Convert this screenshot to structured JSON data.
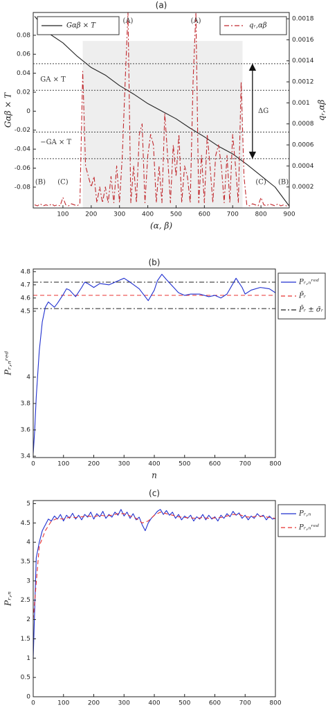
{
  "chart_data": [
    {
      "type": "line",
      "title": "(a)",
      "x_label": "(α, β)",
      "y_label": "Gαβ × T",
      "y2_label": "qᵣ,αβ",
      "xlim": [
        -5,
        900
      ],
      "xticks": [
        100,
        200,
        300,
        400,
        500,
        600,
        700,
        800,
        900
      ],
      "ylim": [
        -0.102,
        0.104
      ],
      "yticks": [
        -0.08,
        -0.06,
        -0.04,
        -0.02,
        0,
        0.02,
        0.04,
        0.06,
        0.08
      ],
      "y2lim": [
        0,
        0.00186
      ],
      "y2ticks": [
        0.0002,
        0.0004,
        0.0006,
        0.0008,
        0.001,
        0.0012,
        0.0014,
        0.0016,
        0.0018
      ],
      "legend": "top",
      "shade": {
        "x": [
          170,
          735
        ],
        "top": 0.074,
        "color": "#eeeeee"
      },
      "reference_lines": [
        {
          "values": [
            0.05,
            0.022,
            -0.022,
            -0.05
          ],
          "color": "#444444",
          "linestyle": "dotted"
        }
      ],
      "annotations": [
        "(A)",
        "(A)",
        "(B)",
        "(B)",
        "(C)",
        "(C)",
        "GA × T",
        "−GA × T",
        "ΔG"
      ],
      "series": [
        {
          "name": "Gαβ × T",
          "color": "#222222",
          "linestyle": "solid",
          "x": [
            0,
            50,
            100,
            150,
            200,
            250,
            300,
            350,
            400,
            450,
            500,
            550,
            600,
            650,
            700,
            750,
            800,
            850,
            900
          ],
          "values": [
            0.1,
            0.082,
            0.072,
            0.058,
            0.046,
            0.038,
            0.027,
            0.018,
            0.008,
            0.0,
            -0.008,
            -0.018,
            -0.027,
            -0.037,
            -0.045,
            -0.056,
            -0.068,
            -0.08,
            -0.1
          ]
        },
        {
          "name": "qᵣ,αβ",
          "color": "#c0282d",
          "linestyle": "dashdot",
          "axis": "y2",
          "x": [
            0,
            10,
            20,
            30,
            40,
            50,
            60,
            70,
            80,
            90,
            100,
            110,
            120,
            130,
            140,
            150,
            160,
            170,
            180,
            190,
            200,
            210,
            220,
            230,
            240,
            250,
            260,
            270,
            280,
            290,
            300,
            310,
            320,
            330,
            340,
            350,
            360,
            370,
            380,
            390,
            400,
            410,
            420,
            430,
            440,
            450,
            460,
            470,
            480,
            490,
            500,
            510,
            520,
            530,
            540,
            550,
            560,
            570,
            580,
            590,
            600,
            610,
            620,
            630,
            640,
            650,
            660,
            670,
            680,
            690,
            700,
            710,
            720,
            730,
            740,
            750,
            760,
            770,
            780,
            790,
            800,
            810,
            820,
            830,
            840,
            850,
            860,
            870,
            880,
            890,
            900
          ],
          "values": [
            3e-05,
            2e-05,
            4e-05,
            2e-05,
            3e-05,
            2e-05,
            4e-05,
            2e-05,
            3e-05,
            2e-05,
            0.0001,
            3e-05,
            2e-05,
            4e-05,
            3e-05,
            2e-05,
            4e-05,
            0.0013,
            0.0004,
            0.0003,
            0.0002,
            0.0003,
            5e-05,
            0.0002,
            5e-05,
            0.0002,
            5e-05,
            0.0003,
            5e-05,
            0.0004,
            5e-05,
            0.0005,
            0.0012,
            0.00186,
            5e-05,
            0.0004,
            5e-05,
            0.0007,
            0.0008,
            5e-05,
            0.0005,
            0.0007,
            0.0006,
            5e-05,
            0.0004,
            5e-05,
            0.0009,
            0.0005,
            5e-05,
            0.0006,
            0.0003,
            0.0007,
            5e-05,
            0.0004,
            0.0003,
            5e-05,
            0.0012,
            0.00186,
            5e-05,
            0.0005,
            5e-05,
            0.0007,
            0.0004,
            5e-05,
            0.0005,
            0.0006,
            0.0004,
            5e-05,
            0.0005,
            5e-05,
            0.0007,
            0.0004,
            5e-05,
            0.0012,
            0.0003,
            3e-05,
            2e-05,
            4e-05,
            3e-05,
            2e-05,
            0.0001,
            3e-05,
            2e-05,
            4e-05,
            3e-05,
            2e-05,
            4e-05,
            2e-05,
            3e-05,
            2e-05,
            3e-05
          ]
        }
      ]
    },
    {
      "type": "line",
      "title": "(b)",
      "x_label": "n",
      "y_label": "Pᵣ,ₙʳᵉᵈ",
      "xlim": [
        0,
        800
      ],
      "xticks": [
        0,
        100,
        200,
        300,
        400,
        500,
        600,
        700,
        800
      ],
      "ylim": [
        3.39,
        4.82
      ],
      "yticks": [
        3.4,
        3.6,
        3.8,
        4,
        4.5,
        4.6,
        4.7,
        4.8
      ],
      "legend": "right",
      "series": [
        {
          "name": "Pᵣ,ₙʳᵉᵈ",
          "color": "#1f2fcf",
          "linestyle": "solid",
          "x": [
            0,
            5,
            10,
            20,
            30,
            40,
            50,
            60,
            70,
            80,
            100,
            110,
            120,
            140,
            160,
            170,
            180,
            200,
            220,
            250,
            280,
            300,
            320,
            350,
            380,
            400,
            410,
            425,
            440,
            460,
            480,
            500,
            520,
            550,
            580,
            600,
            620,
            640,
            670,
            690,
            700,
            720,
            750,
            780,
            800
          ],
          "values": [
            3.42,
            3.6,
            3.85,
            4.2,
            4.42,
            4.53,
            4.57,
            4.55,
            4.53,
            4.56,
            4.63,
            4.67,
            4.66,
            4.61,
            4.68,
            4.72,
            4.71,
            4.68,
            4.71,
            4.7,
            4.73,
            4.75,
            4.72,
            4.67,
            4.58,
            4.66,
            4.73,
            4.78,
            4.74,
            4.69,
            4.64,
            4.62,
            4.63,
            4.63,
            4.61,
            4.62,
            4.6,
            4.63,
            4.75,
            4.68,
            4.63,
            4.66,
            4.68,
            4.67,
            4.64
          ]
        }
      ],
      "reference_lines": [
        {
          "name": "P̄ᵣ",
          "values": [
            4.62
          ],
          "color": "#e8312f",
          "linestyle": "dashed"
        },
        {
          "name": "P̄ᵣ ± σ̄ᵣ",
          "values": [
            4.52,
            4.72
          ],
          "color": "#222222",
          "linestyle": "dashdot"
        }
      ]
    },
    {
      "type": "line",
      "title": "(c)",
      "x_label": "n",
      "y_label": "Pᵣ,ₙ",
      "xlim": [
        0,
        800
      ],
      "xticks": [
        0,
        100,
        200,
        300,
        400,
        500,
        600,
        700,
        800
      ],
      "ylim": [
        0,
        5.08
      ],
      "yticks": [
        0,
        0.5,
        1,
        1.5,
        2,
        2.5,
        3,
        3.5,
        4,
        4.5,
        5
      ],
      "legend": "right",
      "series": [
        {
          "name": "Pᵣ,ₙ",
          "color": "#1f2fcf",
          "linestyle": "solid",
          "x": [
            0,
            10,
            20,
            30,
            40,
            50,
            60,
            70,
            80,
            90,
            100,
            110,
            120,
            130,
            140,
            150,
            160,
            170,
            180,
            190,
            200,
            210,
            220,
            230,
            240,
            250,
            260,
            270,
            280,
            290,
            300,
            310,
            320,
            330,
            340,
            350,
            360,
            370,
            380,
            390,
            400,
            410,
            420,
            430,
            440,
            450,
            460,
            470,
            480,
            490,
            500,
            510,
            520,
            530,
            540,
            550,
            560,
            570,
            580,
            590,
            600,
            610,
            620,
            630,
            640,
            650,
            660,
            670,
            680,
            690,
            700,
            710,
            720,
            730,
            740,
            750,
            760,
            770,
            780,
            790,
            800
          ],
          "values": [
            1.0,
            3.6,
            4.0,
            4.3,
            4.45,
            4.6,
            4.55,
            4.68,
            4.6,
            4.72,
            4.55,
            4.7,
            4.62,
            4.75,
            4.6,
            4.7,
            4.58,
            4.72,
            4.65,
            4.78,
            4.6,
            4.74,
            4.66,
            4.8,
            4.62,
            4.72,
            4.65,
            4.78,
            4.7,
            4.85,
            4.68,
            4.78,
            4.62,
            4.74,
            4.58,
            4.65,
            4.45,
            4.3,
            4.5,
            4.62,
            4.7,
            4.8,
            4.85,
            4.72,
            4.82,
            4.7,
            4.78,
            4.62,
            4.72,
            4.58,
            4.68,
            4.62,
            4.7,
            4.55,
            4.66,
            4.6,
            4.72,
            4.58,
            4.7,
            4.6,
            4.66,
            4.55,
            4.7,
            4.62,
            4.74,
            4.66,
            4.8,
            4.7,
            4.76,
            4.62,
            4.7,
            4.58,
            4.68,
            4.62,
            4.74,
            4.66,
            4.7,
            4.58,
            4.68,
            4.6,
            4.62
          ]
        },
        {
          "name": "Pᵣ,ₙʳᵉᵈ",
          "color": "#e8312f",
          "linestyle": "dashed",
          "x": [
            0,
            20,
            40,
            60,
            80,
            100,
            120,
            140,
            160,
            180,
            200,
            220,
            240,
            260,
            280,
            300,
            320,
            340,
            360,
            380,
            400,
            420,
            440,
            460,
            480,
            500,
            520,
            540,
            560,
            580,
            600,
            620,
            640,
            660,
            680,
            700,
            720,
            740,
            760,
            780,
            800
          ],
          "values": [
            2.0,
            3.9,
            4.3,
            4.55,
            4.62,
            4.6,
            4.65,
            4.64,
            4.66,
            4.68,
            4.66,
            4.7,
            4.68,
            4.7,
            4.74,
            4.74,
            4.68,
            4.62,
            4.5,
            4.55,
            4.7,
            4.78,
            4.74,
            4.7,
            4.66,
            4.64,
            4.63,
            4.62,
            4.64,
            4.62,
            4.63,
            4.64,
            4.68,
            4.72,
            4.72,
            4.66,
            4.65,
            4.68,
            4.67,
            4.64,
            4.62
          ]
        }
      ]
    }
  ]
}
